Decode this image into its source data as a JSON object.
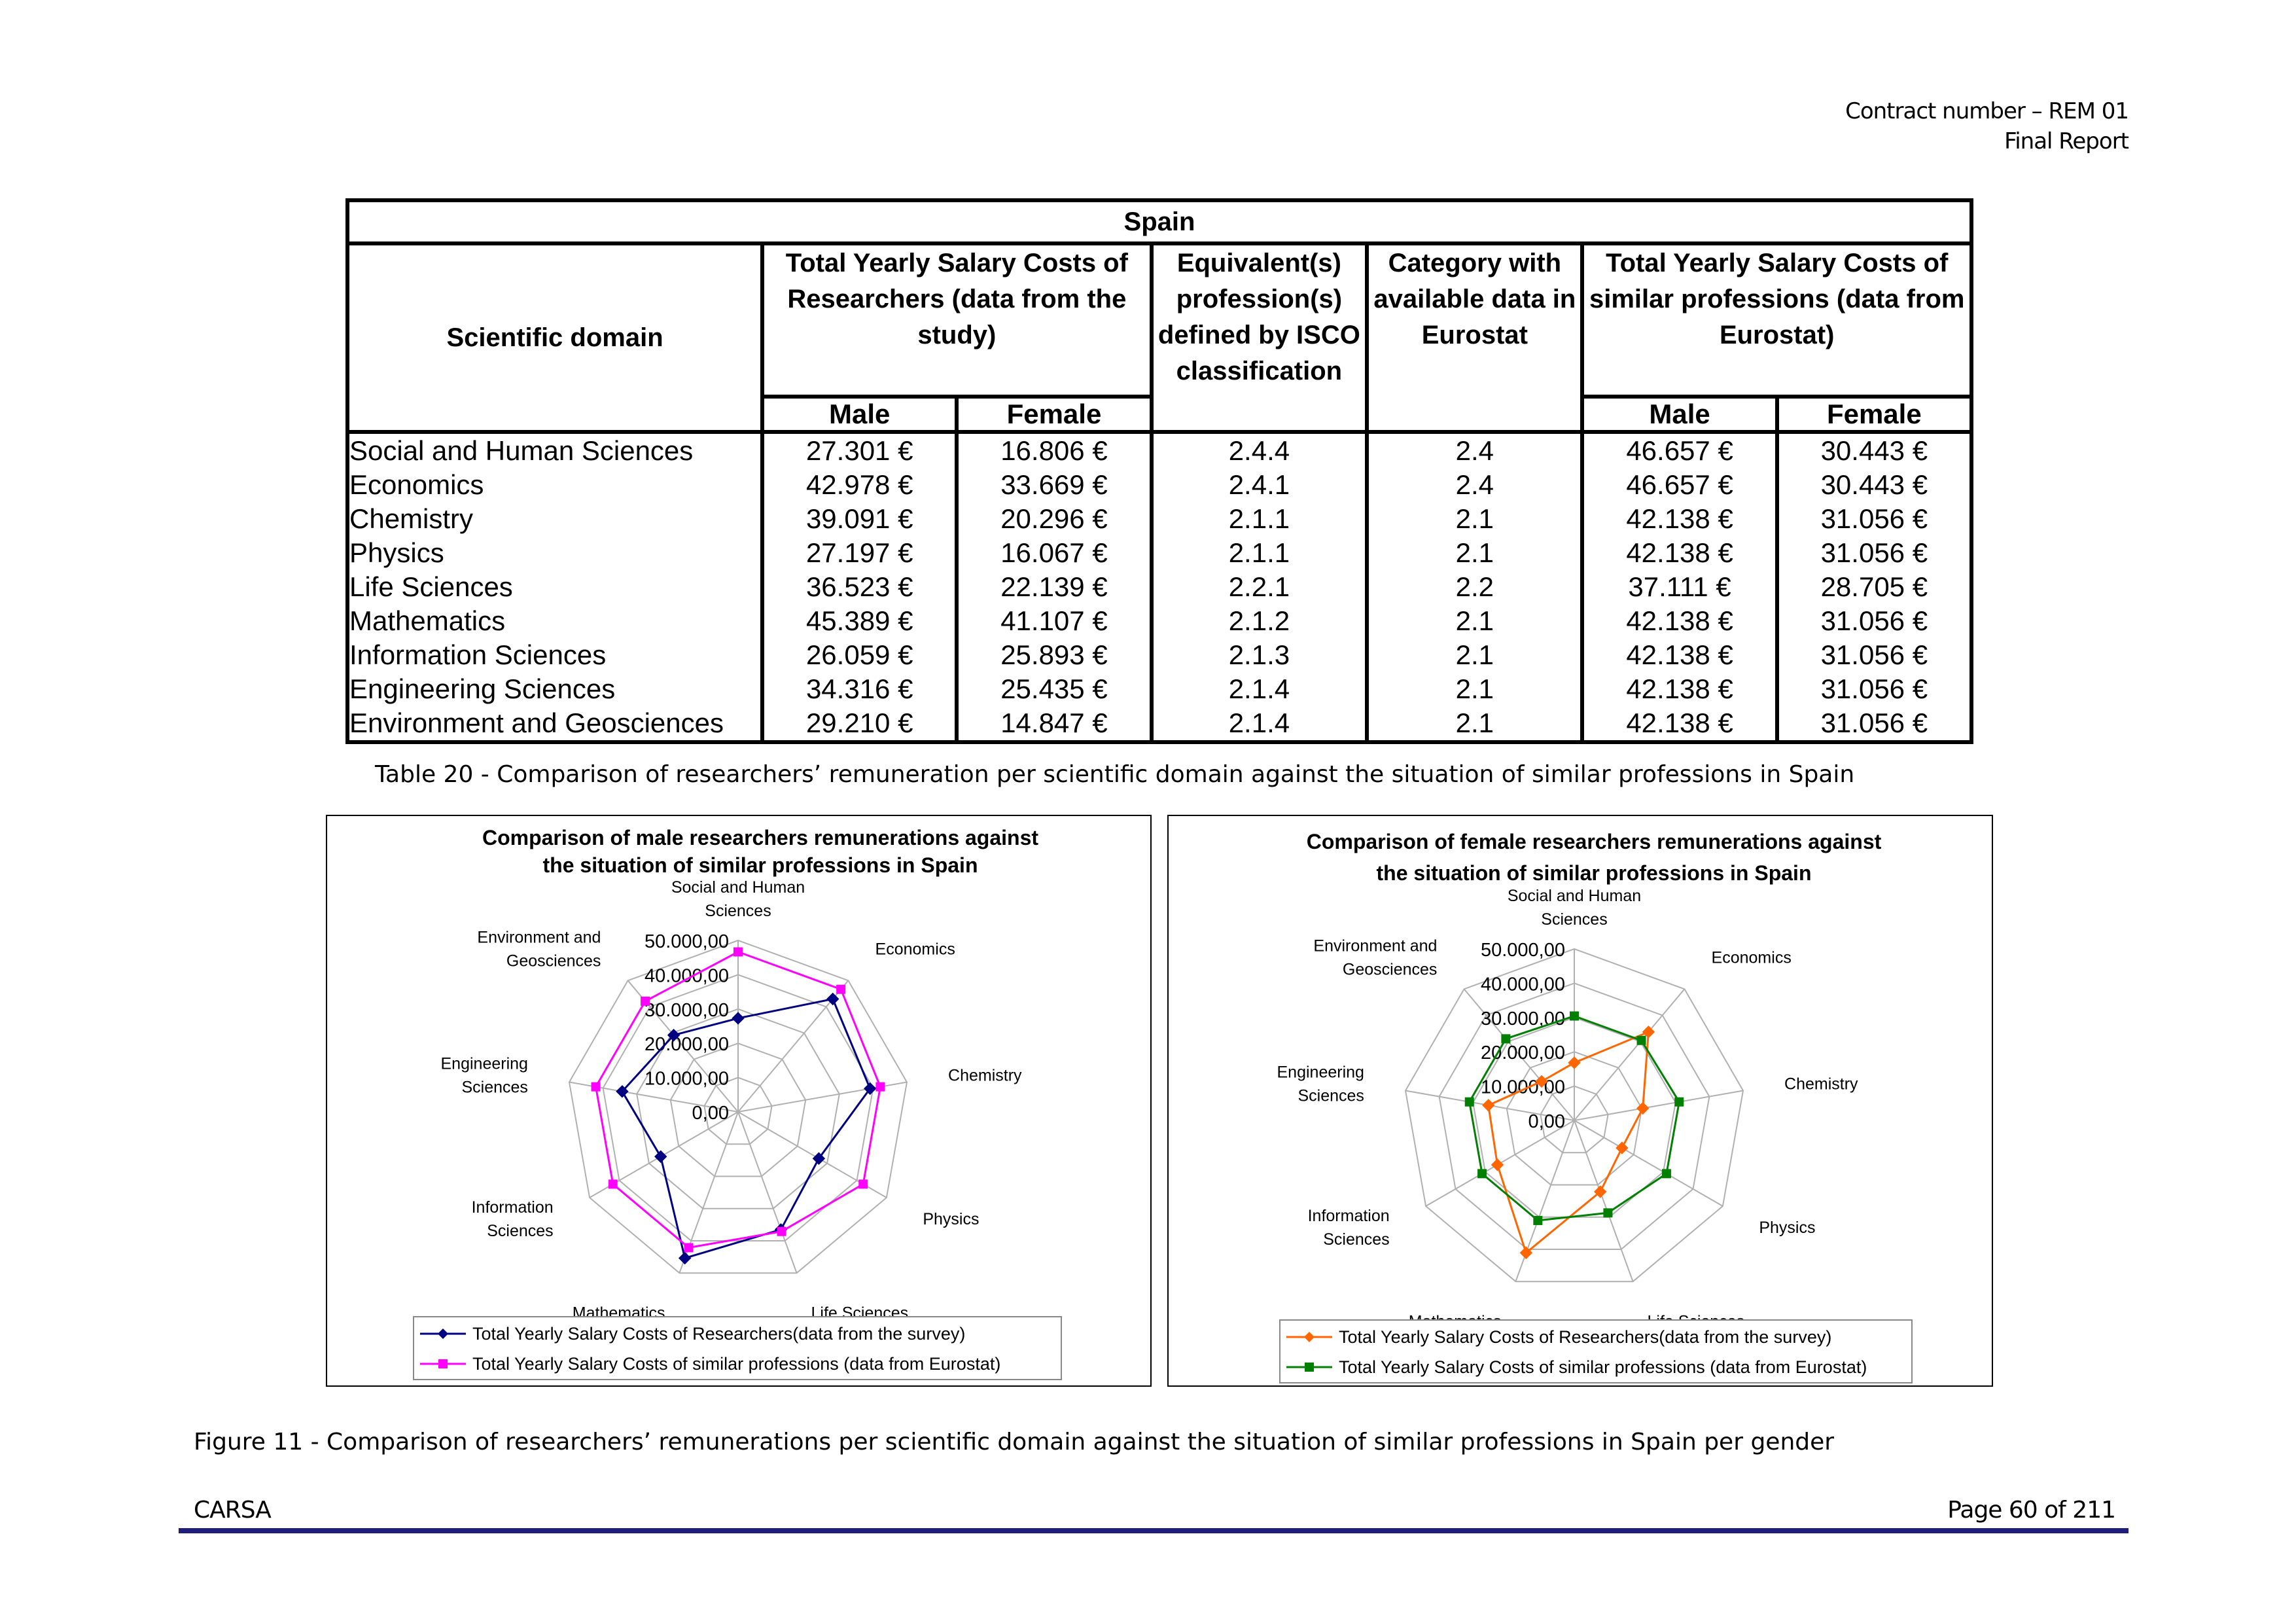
{
  "header": {
    "contract": "Contract number – REM 01",
    "report": "Final Report"
  },
  "table": {
    "title": "Spain",
    "col_domain": "Scientific domain",
    "col_study": "Total Yearly Salary Costs of Researchers (data from the study)",
    "col_isco": "Equivalent(s) profession(s) defined by ISCO classification",
    "col_category": "Category with available data in Eurostat",
    "col_eurostat": "Total Yearly Salary Costs of similar professions (data from Eurostat)",
    "male": "Male",
    "female": "Female",
    "rows": [
      {
        "domain": "Social and Human Sciences",
        "study_male": "27.301 €",
        "study_female": "16.806 €",
        "isco": "2.4.4",
        "category": "2.4",
        "euro_male": "46.657 €",
        "euro_female": "30.443 €"
      },
      {
        "domain": "Economics",
        "study_male": "42.978 €",
        "study_female": "33.669 €",
        "isco": "2.4.1",
        "category": "2.4",
        "euro_male": "46.657 €",
        "euro_female": "30.443 €"
      },
      {
        "domain": "Chemistry",
        "study_male": "39.091 €",
        "study_female": "20.296 €",
        "isco": "2.1.1",
        "category": "2.1",
        "euro_male": "42.138 €",
        "euro_female": "31.056 €"
      },
      {
        "domain": "Physics",
        "study_male": "27.197 €",
        "study_female": "16.067 €",
        "isco": "2.1.1",
        "category": "2.1",
        "euro_male": "42.138 €",
        "euro_female": "31.056 €"
      },
      {
        "domain": "Life Sciences",
        "study_male": "36.523 €",
        "study_female": "22.139 €",
        "isco": "2.2.1",
        "category": "2.2",
        "euro_male": "37.111 €",
        "euro_female": "28.705 €"
      },
      {
        "domain": "Mathematics",
        "study_male": "45.389 €",
        "study_female": "41.107 €",
        "isco": "2.1.2",
        "category": "2.1",
        "euro_male": "42.138 €",
        "euro_female": "31.056 €"
      },
      {
        "domain": "Information Sciences",
        "study_male": "26.059 €",
        "study_female": "25.893 €",
        "isco": "2.1.3",
        "category": "2.1",
        "euro_male": "42.138 €",
        "euro_female": "31.056 €"
      },
      {
        "domain": "Engineering Sciences",
        "study_male": "34.316 €",
        "study_female": "25.435 €",
        "isco": "2.1.4",
        "category": "2.1",
        "euro_male": "42.138 €",
        "euro_female": "31.056 €"
      },
      {
        "domain": "Environment and Geosciences",
        "study_male": "29.210 €",
        "study_female": "14.847 €",
        "isco": "2.1.4",
        "category": "2.1",
        "euro_male": "42.138 €",
        "euro_female": "31.056 €"
      }
    ]
  },
  "table_caption": "Table 20 - Comparison of researchers’ remuneration per scientific domain against the situation of similar professions in Spain",
  "chart_data": [
    {
      "type": "radar",
      "title_line1": "Comparison of male researchers remunerations against",
      "title_line2": "the situation of similar professions in Spain",
      "categories": [
        "Social and Human Sciences",
        "Economics",
        "Chemistry",
        "Physics",
        "Life Sciences",
        "Mathematics",
        "Information Sciences",
        "Engineering Sciences",
        "Environment and Geosciences"
      ],
      "category_labels": [
        [
          "Social and Human",
          "Sciences"
        ],
        [
          "Economics"
        ],
        [
          "Chemistry"
        ],
        [
          "Physics"
        ],
        [
          "Life Sciences"
        ],
        [
          "Mathematics"
        ],
        [
          "Information",
          "Sciences"
        ],
        [
          "Engineering",
          "Sciences"
        ],
        [
          "Environment and",
          "Geosciences"
        ]
      ],
      "axis_ticks": [
        "0,00",
        "10.000,00",
        "20.000,00",
        "30.000,00",
        "40.000,00",
        "50.000,00"
      ],
      "rmax": 50000,
      "series": [
        {
          "name": "Total Yearly Salary Costs of Researchers(data from the survey)",
          "color": "#000080",
          "marker": "diamond",
          "values": [
            27301,
            42978,
            39091,
            27197,
            36523,
            45389,
            26059,
            34316,
            29210
          ]
        },
        {
          "name": "Total Yearly Salary Costs of similar professions (data from Eurostat)",
          "color": "#ff00ff",
          "marker": "square",
          "values": [
            46657,
            46657,
            42138,
            42138,
            37111,
            42138,
            42138,
            42138,
            42138
          ]
        }
      ],
      "legend_position": "bottom"
    },
    {
      "type": "radar",
      "title_line1": "Comparison of female researchers remunerations against",
      "title_line2": "the situation of similar professions in Spain",
      "categories": [
        "Social and Human Sciences",
        "Economics",
        "Chemistry",
        "Physics",
        "Life Sciences",
        "Mathematics",
        "Information Sciences",
        "Engineering Sciences",
        "Environment and Geosciences"
      ],
      "category_labels": [
        [
          "Social and Human",
          "Sciences"
        ],
        [
          "Economics"
        ],
        [
          "Chemistry"
        ],
        [
          "Physics"
        ],
        [
          "Life Sciences"
        ],
        [
          "Mathematics"
        ],
        [
          "Information",
          "Sciences"
        ],
        [
          "Engineering",
          "Sciences"
        ],
        [
          "Environment and",
          "Geosciences"
        ]
      ],
      "axis_ticks": [
        "0,00",
        "10.000,00",
        "20.000,00",
        "30.000,00",
        "40.000,00",
        "50.000,00"
      ],
      "rmax": 50000,
      "series": [
        {
          "name": "Total Yearly Salary Costs of Researchers(data from the survey)",
          "color": "#ff6600",
          "marker": "diamond",
          "values": [
            16806,
            33669,
            20296,
            16067,
            22139,
            41107,
            25893,
            25435,
            14847
          ]
        },
        {
          "name": "Total Yearly Salary Costs of similar professions (data from Eurostat)",
          "color": "#008000",
          "marker": "square",
          "values": [
            30443,
            30443,
            31056,
            31056,
            28705,
            31056,
            31056,
            31056,
            31056
          ]
        }
      ],
      "legend_position": "bottom"
    }
  ],
  "figure_caption": "Figure 11 - Comparison of researchers’ remunerations per scientific domain against the situation of similar professions in Spain per gender",
  "footer": {
    "company": "CARSA",
    "page": "Page 60 of 211"
  }
}
